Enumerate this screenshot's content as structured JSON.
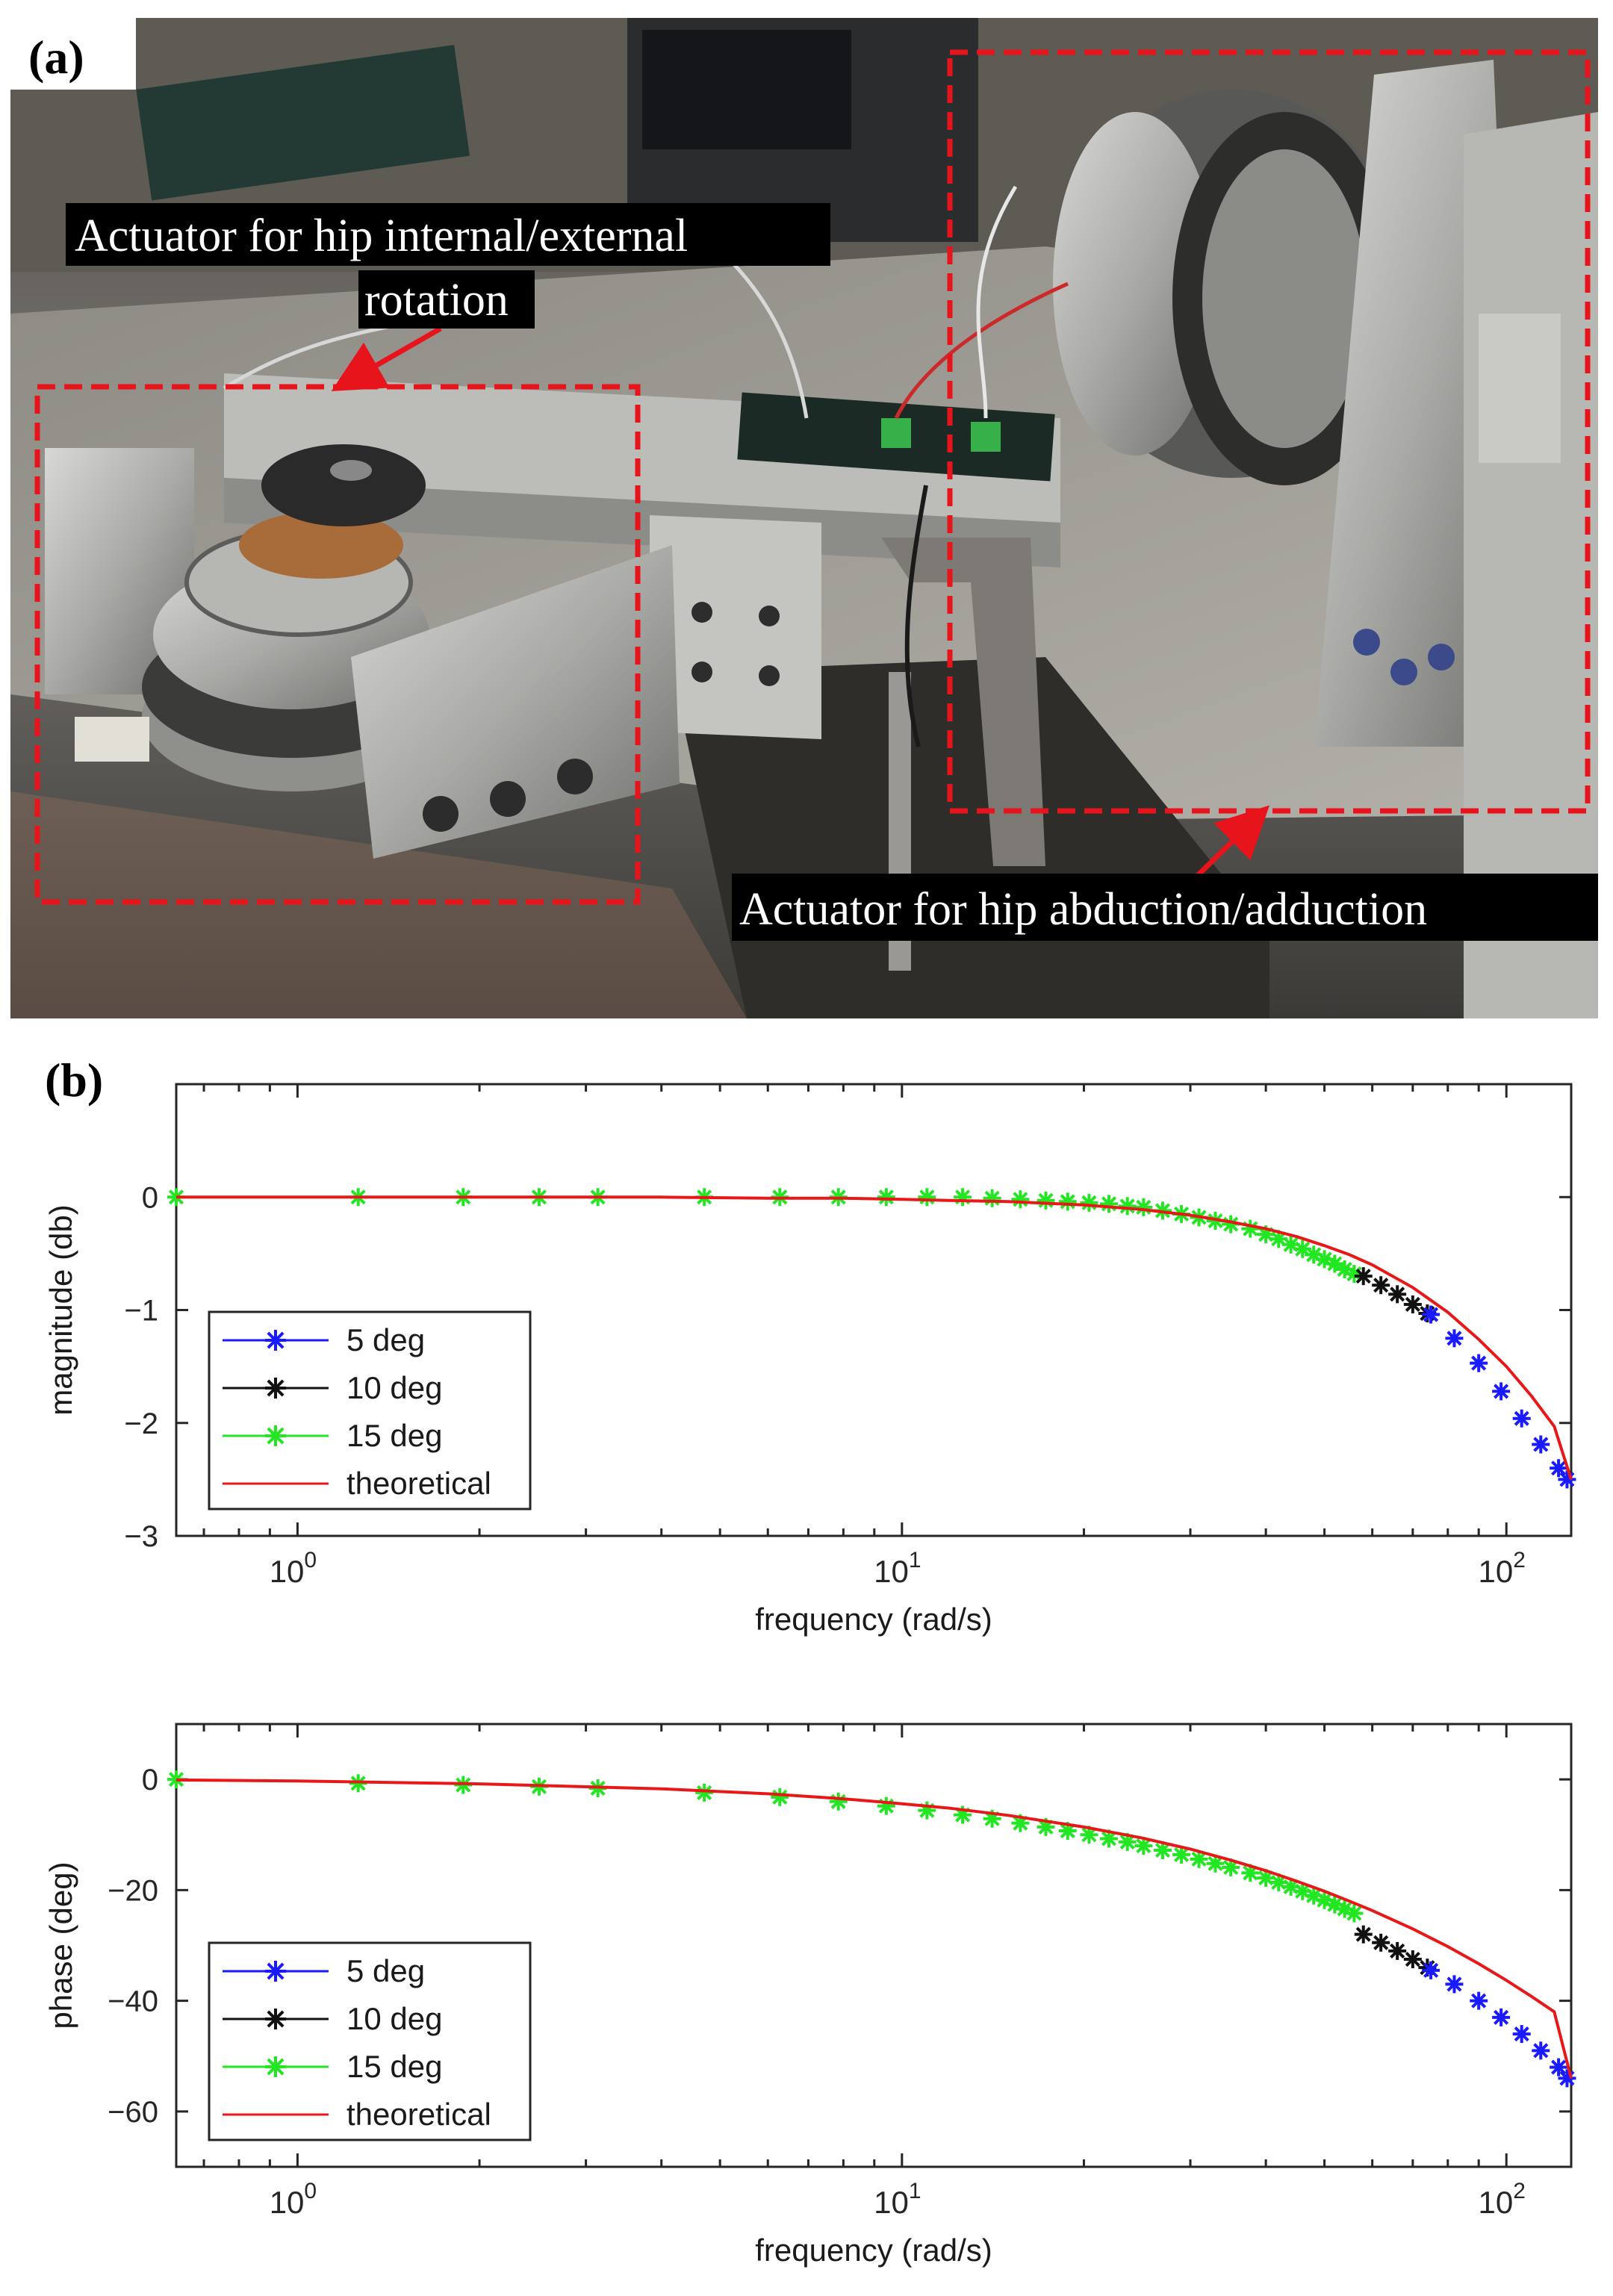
{
  "panel_a": {
    "label": "(a)",
    "annotation_hip_rotation_line1": "Actuator for hip internal/external",
    "annotation_hip_rotation_line2": "rotation",
    "annotation_hip_abduction": "Actuator for hip abduction/adduction",
    "colors": {
      "dashed_box": "#e8141b",
      "arrow": "#e8141b",
      "label_bg": "#000000",
      "label_text": "#ffffff"
    }
  },
  "panel_b": {
    "label": "(b)"
  },
  "chart_data": [
    {
      "type": "line",
      "ylabel": "magnitude (db)",
      "xlabel": "frequency (rad/s)",
      "xscale": "log",
      "xlim": [
        0.63,
        128
      ],
      "ylim": [
        -3,
        1
      ],
      "yticks": [
        0,
        -1,
        -2,
        -3
      ],
      "yticklabels": [
        "0",
        "−1",
        "−2",
        "−3"
      ],
      "xticks": [
        1,
        10,
        100
      ],
      "xticklabels": [
        {
          "base": "10",
          "exp": "0"
        },
        {
          "base": "10",
          "exp": "1"
        },
        {
          "base": "10",
          "exp": "2"
        }
      ],
      "legend": {
        "placement": "lower-left",
        "entries": [
          "5 deg",
          "10 deg",
          "15 deg",
          "theoretical"
        ]
      },
      "series": [
        {
          "name": "5 deg",
          "color": "#1a1aff",
          "marker": "asterisk",
          "x": [
            75,
            82,
            90,
            98,
            106,
            114,
            122,
            126
          ],
          "y": [
            -1.04,
            -1.25,
            -1.47,
            -1.72,
            -1.96,
            -2.19,
            -2.4,
            -2.5
          ]
        },
        {
          "name": "10 deg",
          "color": "#111111",
          "marker": "asterisk",
          "x": [
            58,
            62,
            66,
            70,
            74
          ],
          "y": [
            -0.7,
            -0.78,
            -0.86,
            -0.95,
            -1.03
          ]
        },
        {
          "name": "15 deg",
          "color": "#22e622",
          "marker": "asterisk",
          "x": [
            0.63,
            1.26,
            1.88,
            2.51,
            3.14,
            4.71,
            6.28,
            7.85,
            9.42,
            11,
            12.6,
            14.1,
            15.7,
            17.3,
            18.8,
            20.4,
            22,
            23.6,
            25.1,
            27,
            29,
            31,
            33,
            35,
            37.7,
            40,
            42,
            44,
            46,
            48,
            50,
            52,
            54,
            56
          ],
          "y": [
            0,
            0,
            0,
            0,
            0,
            0,
            0,
            0,
            0,
            0,
            0,
            -0.01,
            -0.02,
            -0.03,
            -0.04,
            -0.05,
            -0.06,
            -0.08,
            -0.09,
            -0.12,
            -0.15,
            -0.18,
            -0.21,
            -0.24,
            -0.28,
            -0.33,
            -0.37,
            -0.42,
            -0.46,
            -0.51,
            -0.55,
            -0.59,
            -0.64,
            -0.68
          ]
        },
        {
          "name": "theoretical",
          "color": "#e81818",
          "marker": "none",
          "x": [
            0.63,
            1,
            2,
            4,
            6,
            8,
            10,
            12,
            15,
            20,
            25,
            30,
            35,
            40,
            45,
            50,
            55,
            60,
            70,
            80,
            90,
            100,
            110,
            120,
            128
          ],
          "y": [
            0,
            0,
            0,
            0,
            -0.01,
            -0.01,
            -0.02,
            -0.03,
            -0.04,
            -0.07,
            -0.11,
            -0.16,
            -0.22,
            -0.28,
            -0.35,
            -0.43,
            -0.51,
            -0.6,
            -0.8,
            -1.02,
            -1.26,
            -1.5,
            -1.76,
            -2.03,
            -2.5
          ]
        }
      ]
    },
    {
      "type": "line",
      "ylabel": "phase (deg)",
      "xlabel": "frequency (rad/s)",
      "xscale": "log",
      "xlim": [
        0.63,
        128
      ],
      "ylim": [
        -70,
        10
      ],
      "yticks": [
        0,
        -20,
        -40,
        -60
      ],
      "yticklabels": [
        "0",
        "−20",
        "−40",
        "−60"
      ],
      "xticks": [
        1,
        10,
        100
      ],
      "xticklabels": [
        {
          "base": "10",
          "exp": "0"
        },
        {
          "base": "10",
          "exp": "1"
        },
        {
          "base": "10",
          "exp": "2"
        }
      ],
      "legend": {
        "placement": "lower-left",
        "entries": [
          "5 deg",
          "10 deg",
          "15 deg",
          "theoretical"
        ]
      },
      "series": [
        {
          "name": "5 deg",
          "color": "#1a1aff",
          "marker": "asterisk",
          "x": [
            75,
            82,
            90,
            98,
            106,
            114,
            122,
            126
          ],
          "y": [
            -34.5,
            -37,
            -40,
            -43,
            -46,
            -49,
            -52,
            -54
          ]
        },
        {
          "name": "10 deg",
          "color": "#111111",
          "marker": "asterisk",
          "x": [
            58,
            62,
            66,
            70,
            74
          ],
          "y": [
            -28,
            -29.5,
            -31,
            -32.5,
            -34
          ]
        },
        {
          "name": "15 deg",
          "color": "#22e622",
          "marker": "asterisk",
          "x": [
            0.63,
            1.26,
            1.88,
            2.51,
            3.14,
            4.71,
            6.28,
            7.85,
            9.42,
            11,
            12.6,
            14.1,
            15.7,
            17.3,
            18.8,
            20.4,
            22,
            23.6,
            25.1,
            27,
            29,
            31,
            33,
            35,
            37.7,
            40,
            42,
            44,
            46,
            48,
            50,
            52,
            54,
            56
          ],
          "y": [
            0,
            -0.7,
            -1.0,
            -1.3,
            -1.6,
            -2.4,
            -3.2,
            -4.0,
            -4.8,
            -5.6,
            -6.4,
            -7.1,
            -7.9,
            -8.6,
            -9.3,
            -10.0,
            -10.7,
            -11.3,
            -12.0,
            -12.8,
            -13.6,
            -14.4,
            -15.2,
            -15.9,
            -16.9,
            -17.8,
            -18.6,
            -19.4,
            -20.2,
            -21.0,
            -21.8,
            -22.6,
            -23.4,
            -24.2
          ]
        },
        {
          "name": "theoretical",
          "color": "#e81818",
          "marker": "none",
          "x": [
            0.63,
            1,
            2,
            4,
            6,
            8,
            10,
            12,
            15,
            20,
            25,
            30,
            35,
            40,
            45,
            50,
            55,
            60,
            70,
            80,
            90,
            100,
            110,
            120,
            128
          ],
          "y": [
            -0.1,
            -0.3,
            -0.8,
            -1.7,
            -2.6,
            -3.5,
            -4.4,
            -5.2,
            -6.5,
            -8.6,
            -10.6,
            -12.6,
            -14.6,
            -16.5,
            -18.4,
            -20.2,
            -22.0,
            -23.7,
            -27.0,
            -30.2,
            -33.3,
            -36.3,
            -39.2,
            -42.0,
            -54.0
          ]
        }
      ]
    }
  ]
}
